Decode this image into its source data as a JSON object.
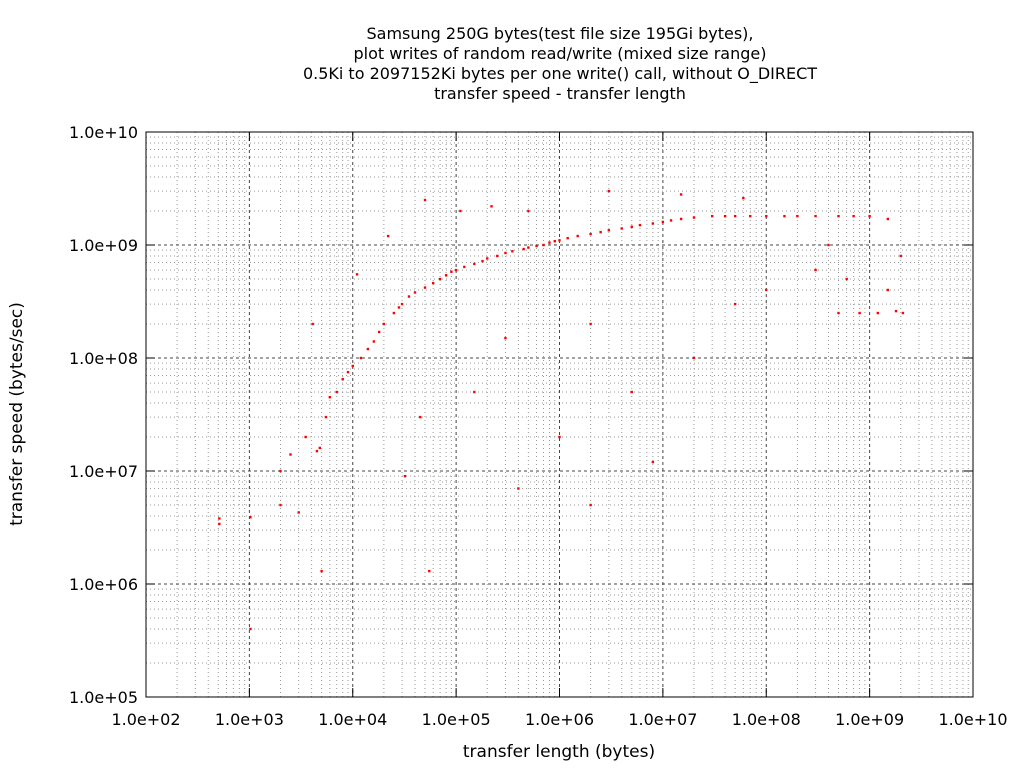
{
  "chart_data": {
    "type": "scatter",
    "title": [
      "Samsung 250G bytes(test file size 195Gi bytes),",
      "plot writes of random read/write (mixed size range)",
      "0.5Ki to 2097152Ki bytes per one write() call, without O_DIRECT",
      "transfer speed - transfer length"
    ],
    "xlabel": "transfer length (bytes)",
    "ylabel": "transfer speed (bytes/sec)",
    "x_scale": "log",
    "y_scale": "log",
    "xlim": [
      100,
      10000000000
    ],
    "ylim": [
      100000,
      10000000000
    ],
    "x_ticks": [
      {
        "value": 100,
        "label": "1.0e+02"
      },
      {
        "value": 1000,
        "label": "1.0e+03"
      },
      {
        "value": 10000,
        "label": "1.0e+04"
      },
      {
        "value": 100000,
        "label": "1.0e+05"
      },
      {
        "value": 1000000,
        "label": "1.0e+06"
      },
      {
        "value": 10000000,
        "label": "1.0e+07"
      },
      {
        "value": 100000000,
        "label": "1.0e+08"
      },
      {
        "value": 1000000000,
        "label": "1.0e+09"
      },
      {
        "value": 10000000000,
        "label": "1.0e+10"
      }
    ],
    "y_ticks": [
      {
        "value": 100000,
        "label": "1.0e+05"
      },
      {
        "value": 1000000,
        "label": "1.0e+06"
      },
      {
        "value": 10000000,
        "label": "1.0e+07"
      },
      {
        "value": 100000000,
        "label": "1.0e+08"
      },
      {
        "value": 1000000000,
        "label": "1.0e+09"
      },
      {
        "value": 10000000000,
        "label": "1.0e+10"
      }
    ],
    "grid": true,
    "series": [
      {
        "color": "#ff0000",
        "points": [
          [
            512,
            3800000
          ],
          [
            512,
            3400000
          ],
          [
            1024,
            400000
          ],
          [
            1024,
            3900000
          ],
          [
            2000,
            5000000
          ],
          [
            2000,
            10000000
          ],
          [
            2500,
            14000000
          ],
          [
            3000,
            4300000
          ],
          [
            3500,
            20000000
          ],
          [
            4096,
            200000000
          ],
          [
            4500,
            15000000
          ],
          [
            4800,
            16000000
          ],
          [
            5000,
            1300000
          ],
          [
            5500,
            30000000
          ],
          [
            6000,
            45000000
          ],
          [
            7000,
            50000000
          ],
          [
            8000,
            65000000
          ],
          [
            9000,
            75000000
          ],
          [
            10000,
            85000000
          ],
          [
            11000,
            550000000
          ],
          [
            12000,
            100000000
          ],
          [
            14000,
            120000000
          ],
          [
            16000,
            140000000
          ],
          [
            18000,
            170000000
          ],
          [
            20000,
            200000000
          ],
          [
            22000,
            1200000000
          ],
          [
            25000,
            250000000
          ],
          [
            28000,
            280000000
          ],
          [
            30000,
            300000000
          ],
          [
            32000,
            9000000
          ],
          [
            35000,
            350000000
          ],
          [
            40000,
            380000000
          ],
          [
            45000,
            30000000
          ],
          [
            50000,
            420000000
          ],
          [
            55000,
            1300000
          ],
          [
            60000,
            460000000
          ],
          [
            70000,
            500000000
          ],
          [
            80000,
            540000000
          ],
          [
            90000,
            580000000
          ],
          [
            100000,
            600000000
          ],
          [
            110000,
            2000000000
          ],
          [
            120000,
            640000000
          ],
          [
            150000,
            680000000
          ],
          [
            180000,
            720000000
          ],
          [
            200000,
            760000000
          ],
          [
            220000,
            2200000000
          ],
          [
            250000,
            800000000
          ],
          [
            300000,
            850000000
          ],
          [
            350000,
            880000000
          ],
          [
            400000,
            7000000
          ],
          [
            450000,
            920000000
          ],
          [
            500000,
            950000000
          ],
          [
            600000,
            980000000
          ],
          [
            700000,
            1000000000
          ],
          [
            800000,
            1050000000
          ],
          [
            900000,
            1080000000
          ],
          [
            1000000,
            1100000000
          ],
          [
            1200000,
            1150000000
          ],
          [
            1500000,
            1200000000
          ],
          [
            2000000,
            1250000000
          ],
          [
            2500000,
            1300000000
          ],
          [
            3000000,
            1350000000
          ],
          [
            4000000,
            1400000000
          ],
          [
            5000000,
            1450000000
          ],
          [
            6000000,
            1500000000
          ],
          [
            8000000,
            1550000000
          ],
          [
            10000000,
            1600000000
          ],
          [
            12000000,
            1650000000
          ],
          [
            15000000,
            1700000000
          ],
          [
            20000000,
            1750000000
          ],
          [
            30000000,
            1800000000
          ],
          [
            40000000,
            1800000000
          ],
          [
            50000000,
            1800000000
          ],
          [
            70000000,
            1800000000
          ],
          [
            100000000,
            1800000000
          ],
          [
            150000000,
            1800000000
          ],
          [
            200000000,
            1800000000
          ],
          [
            300000000,
            1800000000
          ],
          [
            500000000,
            1800000000
          ],
          [
            700000000,
            1800000000
          ],
          [
            1000000000,
            1800000000
          ],
          [
            1500000000,
            1700000000
          ],
          [
            2000000000,
            800000000
          ],
          [
            2100000000,
            250000000
          ],
          [
            500000000,
            250000000
          ],
          [
            800000000,
            250000000
          ],
          [
            1200000000,
            250000000
          ],
          [
            1800000000,
            260000000
          ],
          [
            300000000,
            600000000
          ],
          [
            100000000,
            400000000
          ],
          [
            50000000,
            300000000
          ],
          [
            20000000,
            100000000
          ],
          [
            2000000,
            200000000
          ],
          [
            5000000,
            50000000
          ],
          [
            1000000,
            20000000
          ],
          [
            8000000,
            12000000
          ],
          [
            2000000,
            5000000
          ],
          [
            500000,
            2000000000
          ],
          [
            300000,
            150000000
          ],
          [
            150000,
            50000000
          ],
          [
            50000,
            2500000000
          ],
          [
            3000000,
            3000000000
          ],
          [
            15000000,
            2800000000
          ],
          [
            60000000,
            2600000000
          ],
          [
            400000000,
            1000000000
          ],
          [
            600000000,
            500000000
          ],
          [
            1500000000,
            400000000
          ]
        ]
      }
    ]
  }
}
